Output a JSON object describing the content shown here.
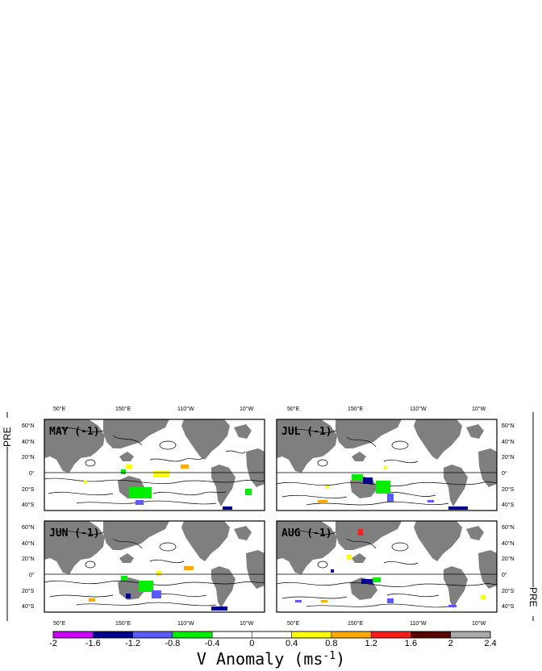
{
  "side_labels": {
    "left": "PRE",
    "right": "PRE"
  },
  "top_lon_labels": [
    "50°E",
    "150°E",
    "110°W",
    "10°W"
  ],
  "bottom_lon_labels": [
    "50°E",
    "150°E",
    "110°W",
    "10°W"
  ],
  "lat_labels": [
    "60°N",
    "40°N",
    "20°N",
    "0°",
    "20°S",
    "40°S"
  ],
  "panels": [
    {
      "label": "MAY (-1)"
    },
    {
      "label": "JUL (-1)"
    },
    {
      "label": "JUN (-1)"
    },
    {
      "label": "AUG (-1)"
    }
  ],
  "colorbar": {
    "ticks": [
      "-2",
      "-1.6",
      "-1.2",
      "-0.8",
      "-0.4",
      "0",
      "0.4",
      "0.8",
      "1.2",
      "1.6",
      "2",
      "2.4"
    ],
    "colors": [
      "#cc00ff",
      "#00008f",
      "#5a5aff",
      "#00ee00",
      "#ffffff",
      "#ffffff",
      "#ffff00",
      "#ffaa00",
      "#ff1a1a",
      "#5a0000",
      "#aaaaaa"
    ]
  },
  "title": "V Anomaly (ms",
  "title_superscript": "-1",
  "title_close": ")"
}
